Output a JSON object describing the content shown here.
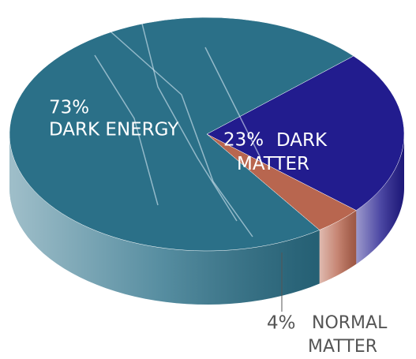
{
  "chart_data": {
    "type": "pie",
    "categories": [
      "DARK ENERGY",
      "DARK MATTER",
      "NORMAL MATTER"
    ],
    "values": [
      73,
      23,
      4
    ],
    "value_labels": [
      "73%",
      "23%",
      "4%"
    ],
    "colors": [
      "#2b7088",
      "#221c8e",
      "#b8664f"
    ]
  }
}
